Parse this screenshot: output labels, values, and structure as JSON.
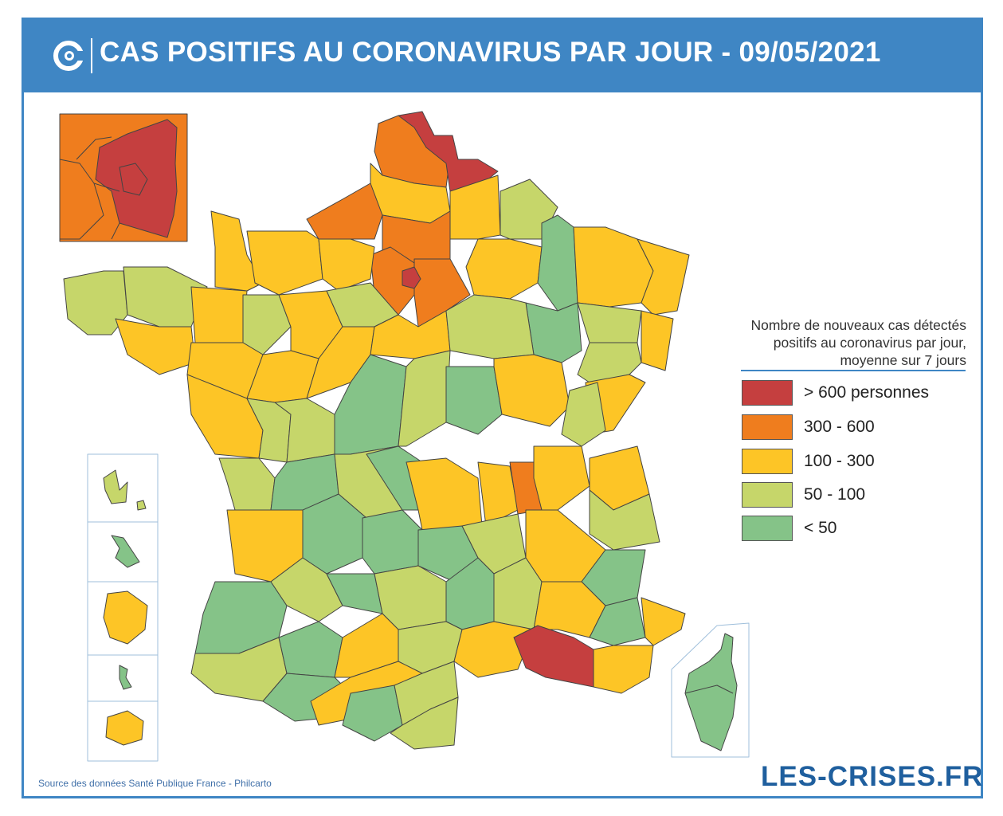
{
  "header": {
    "title": "CAS POSITIFS AU CORONAVIRUS PAR JOUR - 09/05/2021",
    "logo_icon": "c-logo-icon"
  },
  "legend": {
    "title": "Nombre de nouveaux cas détectés positifs au coronavirus par jour, moyenne sur 7 jours",
    "items": [
      {
        "label": "> 600 personnes",
        "color": "#c53f3f"
      },
      {
        "label": "300 - 600",
        "color": "#ef7d1e"
      },
      {
        "label": "100 - 300",
        "color": "#fdc526"
      },
      {
        "label": "50 - 100",
        "color": "#c6d66a"
      },
      {
        "label": "< 50",
        "color": "#85c388"
      }
    ]
  },
  "map": {
    "regions": [
      {
        "name": "Nord",
        "class": "> 600 personnes"
      },
      {
        "name": "Pas-de-Calais",
        "class": "300 - 600"
      },
      {
        "name": "Paris",
        "class": "> 600 personnes"
      },
      {
        "name": "Seine-Saint-Denis",
        "class": "> 600 personnes"
      },
      {
        "name": "Val-de-Marne",
        "class": "> 600 personnes"
      },
      {
        "name": "Hauts-de-Seine",
        "class": "300 - 600"
      },
      {
        "name": "Bouches-du-Rhône",
        "class": "> 600 personnes"
      },
      {
        "name": "Rhône",
        "class": "300 - 600"
      },
      {
        "name": "Seine-Maritime",
        "class": "300 - 600"
      },
      {
        "name": "Oise",
        "class": "300 - 600"
      },
      {
        "name": "Seine-et-Marne",
        "class": "300 - 600"
      },
      {
        "name": "Yvelines",
        "class": "300 - 600"
      },
      {
        "name": "Essonne",
        "class": "300 - 600"
      },
      {
        "name": "Val-d'Oise",
        "class": "300 - 600"
      },
      {
        "name": "Corse",
        "class": "< 50"
      }
    ],
    "colors": {
      "red": "#c53f3f",
      "orange": "#ef7d1e",
      "yellow": "#fdc526",
      "lightgreen": "#c6d66a",
      "green": "#85c388",
      "border": "#444444"
    }
  },
  "footer": {
    "source": "Source des données Santé Publique France - Philcarto",
    "brand": "LES-CRISES.FR"
  }
}
